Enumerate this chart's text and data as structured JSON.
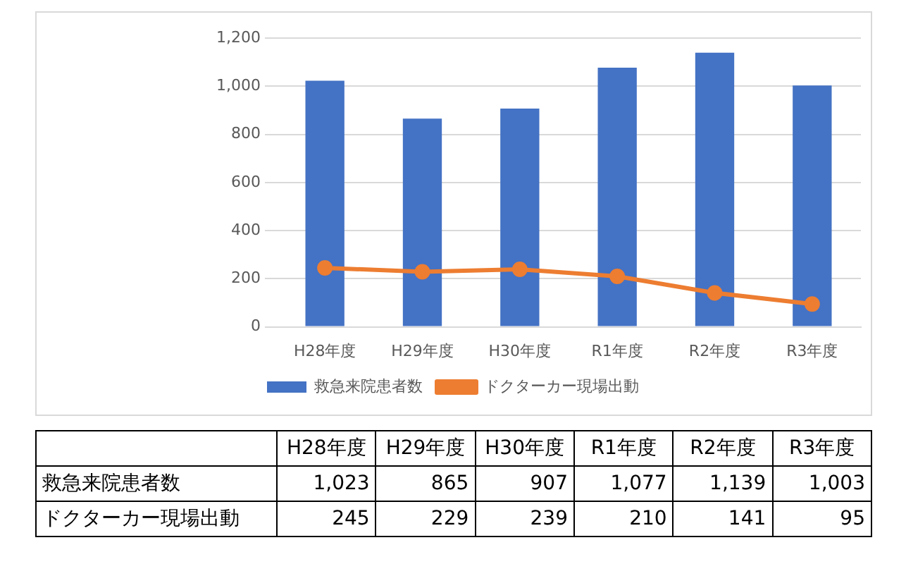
{
  "chart_data": {
    "type": "bar",
    "categories": [
      "H28年度",
      "H29年度",
      "H30年度",
      "R1年度",
      "R2年度",
      "R3年度"
    ],
    "series": [
      {
        "name": "救急来院患者数",
        "color": "#4472c4",
        "values": [
          1023,
          865,
          907,
          1077,
          1139,
          1003
        ],
        "value_labels": [
          "1,023",
          "865",
          "907",
          "1,077",
          "1,139",
          "1,003"
        ]
      },
      {
        "name": "ドクターカー現場出動",
        "type": "line",
        "color": "#ed7d31",
        "values": [
          245,
          229,
          239,
          210,
          141,
          95
        ],
        "value_labels": [
          "245",
          "229",
          "239",
          "210",
          "141",
          "95"
        ]
      }
    ],
    "ylim": [
      0,
      1200
    ],
    "yticks": [
      0,
      200,
      400,
      600,
      800,
      {
        "value": 1000,
        "label": "1,000"
      },
      {
        "value": 1200,
        "label": "1,200"
      }
    ],
    "grid": "y",
    "legend": "bottom",
    "marker": "circle",
    "line_style": "solid",
    "data_labels": true
  }
}
